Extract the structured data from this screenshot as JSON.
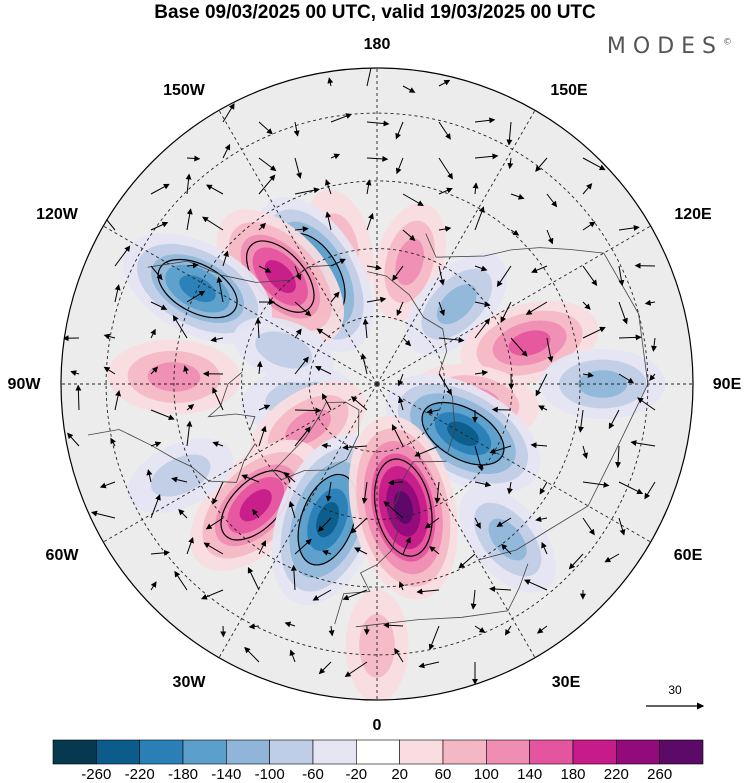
{
  "title": "Base 09/03/2025 00 UTC, valid 19/03/2025 00 UTC",
  "brand": "MODES",
  "brand_mark": "©",
  "longitude_labels": {
    "lon_180": "180",
    "lon_150e": "150E",
    "lon_120e": "120E",
    "lon_90e": "90E",
    "lon_60e": "60E",
    "lon_30e": "30E",
    "lon_0": "0",
    "lon_30w": "30W",
    "lon_60w": "60W",
    "lon_90w": "90W",
    "lon_120w": "120W",
    "lon_150w": "150W"
  },
  "reference_vector": {
    "label": "30",
    "value": 30
  },
  "colorbar": {
    "labels": [
      "-260",
      "-220",
      "-180",
      "-140",
      "-100",
      "-60",
      "-20",
      "20",
      "60",
      "100",
      "140",
      "180",
      "220",
      "260"
    ],
    "colors": [
      "#08384f",
      "#0b5c8a",
      "#2a7fb7",
      "#5b9fcb",
      "#8fb6d9",
      "#c0cde6",
      "#e5e5f3",
      "#ffffff",
      "#f9dde0",
      "#f4b8c4",
      "#ef8db3",
      "#e5559f",
      "#c61c8a",
      "#930b7a",
      "#5b0a68"
    ]
  },
  "anomaly_cells": [
    {
      "lon": 165,
      "lat": 62,
      "value": 80
    },
    {
      "lon": -165,
      "lat": 58,
      "value": 60
    },
    {
      "lon": 135,
      "lat": 65,
      "value": -90
    },
    {
      "lon": -150,
      "lat": 62,
      "value": -200
    },
    {
      "lon": -138,
      "lat": 58,
      "value": 180
    },
    {
      "lon": -118,
      "lat": 45,
      "value": -180
    },
    {
      "lon": 105,
      "lat": 55,
      "value": 130
    },
    {
      "lon": 80,
      "lat": 68,
      "value": 100
    },
    {
      "lon": 60,
      "lat": 68,
      "value": -200
    },
    {
      "lon": 90,
      "lat": 40,
      "value": -90
    },
    {
      "lon": -92,
      "lat": 45,
      "value": 110
    },
    {
      "lon": -80,
      "lat": 72,
      "value": -60
    },
    {
      "lon": -58,
      "lat": 72,
      "value": 100
    },
    {
      "lon": -45,
      "lat": 52,
      "value": 180
    },
    {
      "lon": -20,
      "lat": 58,
      "value": -220
    },
    {
      "lon": 12,
      "lat": 62,
      "value": 240
    },
    {
      "lon": 40,
      "lat": 45,
      "value": -90
    },
    {
      "lon": 0,
      "lat": 32,
      "value": 60
    },
    {
      "lon": -65,
      "lat": 42,
      "value": -60
    },
    {
      "lon": -110,
      "lat": 68,
      "value": -40
    }
  ]
}
